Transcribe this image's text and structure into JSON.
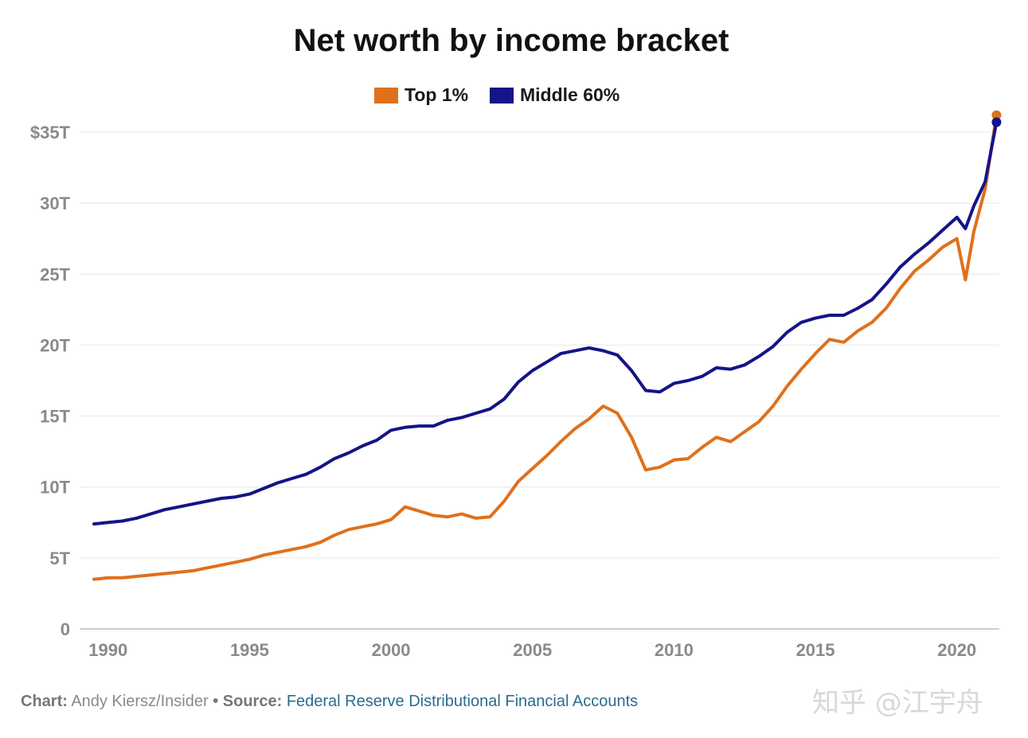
{
  "chart_data": {
    "type": "line",
    "title": "Net worth by income bracket",
    "xlabel": "",
    "ylabel": "",
    "x_ticks": [
      1990,
      1995,
      2000,
      2005,
      2010,
      2015,
      2020
    ],
    "x_tick_labels": [
      "1990",
      "1995",
      "2000",
      "2005",
      "2010",
      "2015",
      "2020"
    ],
    "y_ticks": [
      0,
      5,
      10,
      15,
      20,
      25,
      30,
      35
    ],
    "y_tick_labels": [
      "0",
      "5T",
      "10T",
      "15T",
      "20T",
      "25T",
      "30T",
      "$35T"
    ],
    "xlim": [
      1989.5,
      2021.5
    ],
    "ylim": [
      0,
      35
    ],
    "grid": true,
    "legend_position": "top-center",
    "series": [
      {
        "name": "Top 1%",
        "color": "#e0701c",
        "x": [
          1989.5,
          1990,
          1990.5,
          1991,
          1991.5,
          1992,
          1992.5,
          1993,
          1993.5,
          1994,
          1994.5,
          1995,
          1995.5,
          1996,
          1996.5,
          1997,
          1997.5,
          1998,
          1998.5,
          1999,
          1999.5,
          2000,
          2000.5,
          2001,
          2001.5,
          2002,
          2002.5,
          2003,
          2003.5,
          2004,
          2004.5,
          2005,
          2005.5,
          2006,
          2006.5,
          2007,
          2007.5,
          2008,
          2008.5,
          2009,
          2009.5,
          2010,
          2010.5,
          2011,
          2011.5,
          2012,
          2012.5,
          2013,
          2013.5,
          2014,
          2014.5,
          2015,
          2015.5,
          2016,
          2016.5,
          2017,
          2017.5,
          2018,
          2018.5,
          2019,
          2019.5,
          2020,
          2020.3,
          2020.6,
          2021,
          2021.4
        ],
        "values": [
          3.5,
          3.6,
          3.6,
          3.7,
          3.8,
          3.9,
          4.0,
          4.1,
          4.3,
          4.5,
          4.7,
          4.9,
          5.2,
          5.4,
          5.6,
          5.8,
          6.1,
          6.6,
          7.0,
          7.2,
          7.4,
          7.7,
          8.6,
          8.3,
          8.0,
          7.9,
          8.1,
          7.8,
          7.9,
          9.0,
          10.4,
          11.3,
          12.2,
          13.2,
          14.1,
          14.8,
          15.7,
          15.2,
          13.5,
          11.2,
          11.4,
          11.9,
          12.0,
          12.8,
          13.5,
          13.2,
          13.9,
          14.6,
          15.7,
          17.1,
          18.3,
          19.4,
          20.4,
          20.2,
          21.0,
          21.6,
          22.6,
          24.0,
          25.2,
          26.0,
          26.9,
          27.5,
          24.6,
          28.0,
          31.0,
          36.2
        ]
      },
      {
        "name": "Middle 60%",
        "color": "#141487",
        "x": [
          1989.5,
          1990,
          1990.5,
          1991,
          1991.5,
          1992,
          1992.5,
          1993,
          1993.5,
          1994,
          1994.5,
          1995,
          1995.5,
          1996,
          1996.5,
          1997,
          1997.5,
          1998,
          1998.5,
          1999,
          1999.5,
          2000,
          2000.5,
          2001,
          2001.5,
          2002,
          2002.5,
          2003,
          2003.5,
          2004,
          2004.5,
          2005,
          2005.5,
          2006,
          2006.5,
          2007,
          2007.5,
          2008,
          2008.5,
          2009,
          2009.5,
          2010,
          2010.5,
          2011,
          2011.5,
          2012,
          2012.5,
          2013,
          2013.5,
          2014,
          2014.5,
          2015,
          2015.5,
          2016,
          2016.5,
          2017,
          2017.5,
          2018,
          2018.5,
          2019,
          2019.5,
          2020,
          2020.3,
          2020.6,
          2021,
          2021.4
        ],
        "values": [
          7.4,
          7.5,
          7.6,
          7.8,
          8.1,
          8.4,
          8.6,
          8.8,
          9.0,
          9.2,
          9.3,
          9.5,
          9.9,
          10.3,
          10.6,
          10.9,
          11.4,
          12.0,
          12.4,
          12.9,
          13.3,
          14.0,
          14.2,
          14.3,
          14.3,
          14.7,
          14.9,
          15.2,
          15.5,
          16.2,
          17.4,
          18.2,
          18.8,
          19.4,
          19.6,
          19.8,
          19.6,
          19.3,
          18.2,
          16.8,
          16.7,
          17.3,
          17.5,
          17.8,
          18.4,
          18.3,
          18.6,
          19.2,
          19.9,
          20.9,
          21.6,
          21.9,
          22.1,
          22.1,
          22.6,
          23.2,
          24.3,
          25.5,
          26.4,
          27.2,
          28.1,
          29.0,
          28.2,
          29.8,
          31.5,
          35.7
        ]
      }
    ]
  },
  "footer": {
    "chart_label": "Chart:",
    "chart_credit": "Andy Kiersz/Insider",
    "separator": "•",
    "source_label": "Source:",
    "source_text": "Federal Reserve Distributional Financial Accounts"
  },
  "watermark": {
    "text": "知乎 @江宇舟"
  }
}
